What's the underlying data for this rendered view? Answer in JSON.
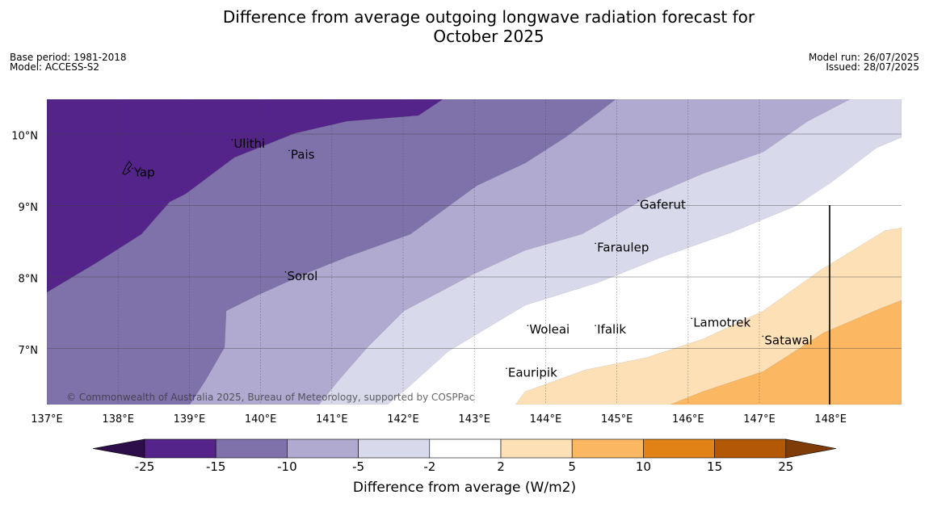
{
  "header": {
    "title_line1": "Difference from average outgoing longwave radiation forecast for",
    "title_line2": "October 2025",
    "base_period": "Base period: 1981-2018",
    "model": "Model: ACCESS-S2",
    "model_run": "Model run: 26/07/2025",
    "issued": "Issued: 28/07/2025"
  },
  "map": {
    "copyright": "© Commonwealth of Australia 2025, Bureau of Meteorology, supported by COSPPac",
    "lon_ticks": [
      "137°E",
      "138°E",
      "139°E",
      "140°E",
      "141°E",
      "142°E",
      "143°E",
      "144°E",
      "145°E",
      "146°E",
      "147°E",
      "148°E"
    ],
    "lat_ticks": [
      "10°N",
      "9°N",
      "8°N",
      "7°N"
    ],
    "places": [
      {
        "name": "Yap",
        "lon": 138.2,
        "lat": 9.5
      },
      {
        "name": "Ulithi",
        "lon": 139.6,
        "lat": 9.9
      },
      {
        "name": "Pais",
        "lon": 140.4,
        "lat": 9.75
      },
      {
        "name": "Gaferut",
        "lon": 145.3,
        "lat": 9.05
      },
      {
        "name": "Faraulep",
        "lon": 144.7,
        "lat": 8.45
      },
      {
        "name": "Sorol",
        "lon": 140.35,
        "lat": 8.05
      },
      {
        "name": "Lamotrek",
        "lon": 146.05,
        "lat": 7.4
      },
      {
        "name": "Satawal",
        "lon": 147.05,
        "lat": 7.15
      },
      {
        "name": "Woleai",
        "lon": 143.75,
        "lat": 7.3
      },
      {
        "name": "Ifalik",
        "lon": 144.7,
        "lat": 7.3
      },
      {
        "name": "Eauripik",
        "lon": 143.45,
        "lat": 6.7
      }
    ]
  },
  "colorbar": {
    "label": "Difference from average (W/m2)",
    "ticks": [
      "-25",
      "-15",
      "-10",
      "-5",
      "-2",
      "2",
      "5",
      "10",
      "15",
      "25"
    ],
    "colors": {
      "below_-25": "#2d0e4a",
      "-25_-15": "#54248a",
      "-15_-10": "#7f72aa",
      "-10_-5": "#b0aad0",
      "-5_-2": "#d8d9ea",
      "-2_2": "#ffffff",
      "2_5": "#fde0b6",
      "5_10": "#fbb761",
      "10_15": "#e08215",
      "15_25": "#b35806",
      "above_25": "#7f3b08"
    }
  }
}
